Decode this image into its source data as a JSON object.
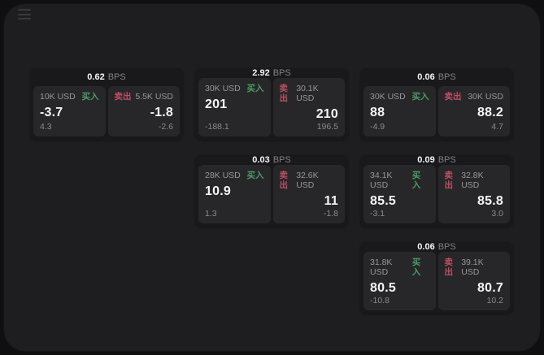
{
  "labels": {
    "bps_unit": "BPS",
    "buy": "买入",
    "sell": "卖出"
  },
  "colors": {
    "background": "#0f0f11",
    "surface": "#1e1e20",
    "card": "#19191b",
    "panel": "#27272a",
    "buy_green": "#4c9c64",
    "sell_red": "#bf4f60",
    "text_primary": "#f5f5f6",
    "text_muted": "#8a8a8e"
  },
  "cards": [
    {
      "bps": "0.62",
      "buy": {
        "amount": "10K USD",
        "price": "-3.7",
        "change": "4.3"
      },
      "sell": {
        "amount": "5.5K USD",
        "price": "-1.8",
        "change": "-2.6"
      }
    },
    {
      "bps": "2.92",
      "buy": {
        "amount": "30K USD",
        "price": "201",
        "change": "-188.1"
      },
      "sell": {
        "amount": "30.1K USD",
        "price": "210",
        "change": "196.5"
      }
    },
    {
      "bps": "0.06",
      "buy": {
        "amount": "30K USD",
        "price": "88",
        "change": "-4.9"
      },
      "sell": {
        "amount": "30K USD",
        "price": "88.2",
        "change": "4.7"
      }
    },
    {
      "bps": "0.03",
      "buy": {
        "amount": "28K USD",
        "price": "10.9",
        "change": "1.3"
      },
      "sell": {
        "amount": "32.6K USD",
        "price": "11",
        "change": "-1.8"
      }
    },
    {
      "bps": "0.09",
      "buy": {
        "amount": "34.1K USD",
        "price": "85.5",
        "change": "-3.1"
      },
      "sell": {
        "amount": "32.8K USD",
        "price": "85.8",
        "change": "3.0"
      }
    },
    {
      "bps": "0.06",
      "buy": {
        "amount": "31.8K USD",
        "price": "80.5",
        "change": "-10.8"
      },
      "sell": {
        "amount": "39.1K USD",
        "price": "80.7",
        "change": "10.2"
      }
    }
  ]
}
